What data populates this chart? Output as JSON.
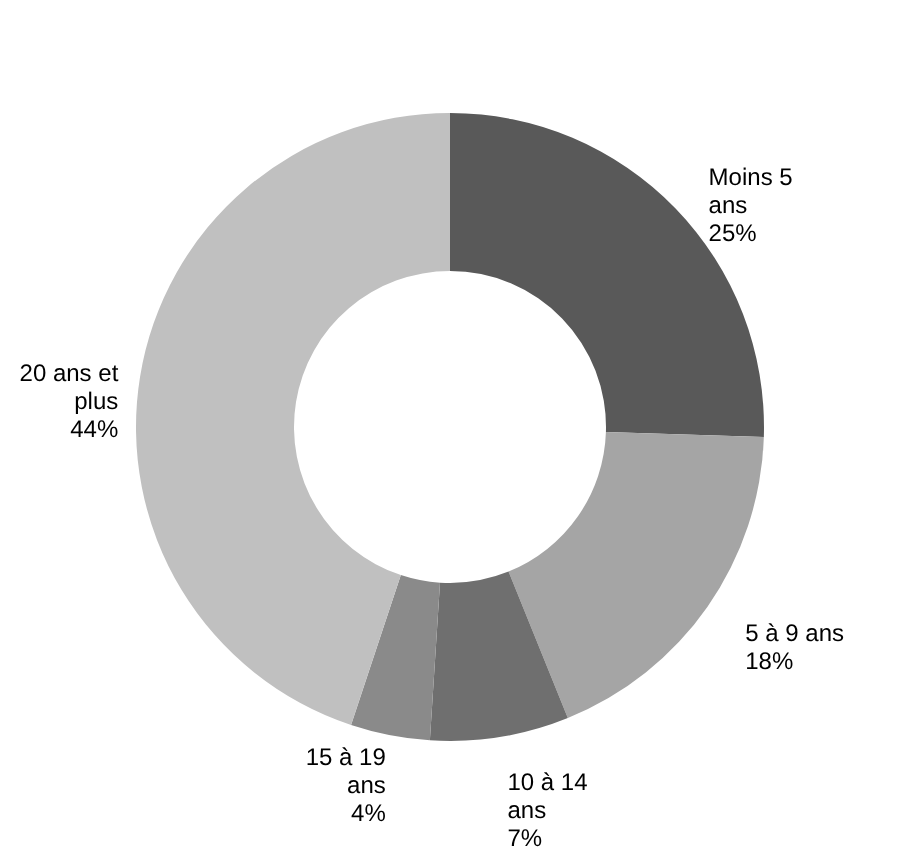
{
  "chart_data": {
    "type": "donut",
    "categories": [
      "Moins  5\nans",
      "5 à 9 ans",
      "10 à 14\nans",
      "15 à 19\nans",
      "20 ans et\nplus"
    ],
    "values": [
      25,
      18,
      7,
      4,
      44
    ],
    "value_labels": [
      "25%",
      "18%",
      "7%",
      "4%",
      "44%"
    ],
    "colors": [
      "#595959",
      "#a5a5a5",
      "#6f6f6f",
      "#8a8a8a",
      "#c0c0c0"
    ],
    "legend": false
  }
}
